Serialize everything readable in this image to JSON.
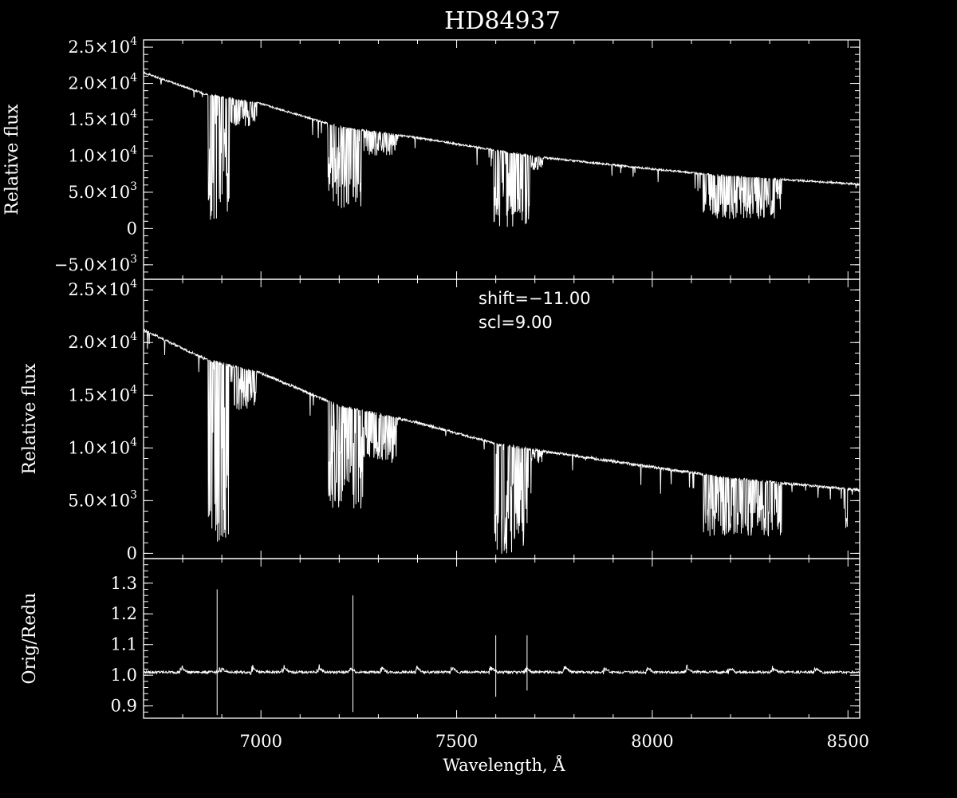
{
  "chart_data": {
    "title": "HD84937",
    "xlabel": "Wavelength, Å",
    "x_ticks": [
      "7000",
      "7500",
      "8000",
      "8500"
    ],
    "panels": [
      {
        "id": "top",
        "type": "line",
        "ylabel": "Relative flux",
        "ylim": [
          -7000,
          26000
        ],
        "y_ticks": [
          {
            "v": 25000,
            "m": "2.5",
            "e": "4"
          },
          {
            "v": 20000,
            "m": "2.0",
            "e": "4"
          },
          {
            "v": 15000,
            "m": "1.5",
            "e": "4"
          },
          {
            "v": 10000,
            "m": "1.0",
            "e": "4"
          },
          {
            "v": 5000,
            "m": "5.0",
            "e": "3"
          },
          {
            "v": 0,
            "m": "0",
            "e": ""
          },
          {
            "v": -5000,
            "m": "−5.0",
            "e": "3"
          }
        ],
        "continuum": [
          [
            6700,
            21500
          ],
          [
            6860,
            18500
          ],
          [
            7000,
            17200
          ],
          [
            7200,
            14000
          ],
          [
            7400,
            12500
          ],
          [
            7600,
            10800
          ],
          [
            7700,
            9900
          ],
          [
            8000,
            8200
          ],
          [
            8200,
            7200
          ],
          [
            8530,
            6100
          ]
        ],
        "bands": [
          {
            "from": 6865,
            "to": 6920,
            "min": 500
          },
          {
            "from": 6920,
            "to": 6990,
            "min": 14000
          },
          {
            "from": 7170,
            "to": 7260,
            "min": 2500
          },
          {
            "from": 7260,
            "to": 7350,
            "min": 10000
          },
          {
            "from": 7595,
            "to": 7690,
            "min": 0
          },
          {
            "from": 7690,
            "to": 7720,
            "min": 8000
          },
          {
            "from": 8130,
            "to": 8330,
            "min": 1200
          }
        ]
      },
      {
        "id": "middle",
        "type": "line",
        "ylabel": "Relative flux",
        "ylim": [
          -500,
          26000
        ],
        "y_ticks": [
          {
            "v": 25000,
            "m": "2.5",
            "e": "4"
          },
          {
            "v": 20000,
            "m": "2.0",
            "e": "4"
          },
          {
            "v": 15000,
            "m": "1.5",
            "e": "4"
          },
          {
            "v": 10000,
            "m": "1.0",
            "e": "4"
          },
          {
            "v": 5000,
            "m": "5.0",
            "e": "3"
          },
          {
            "v": 0,
            "m": "0",
            "e": ""
          }
        ],
        "annotations": [
          "shift=−11.00",
          "scl=9.00"
        ],
        "continuum": [
          [
            6700,
            21200
          ],
          [
            6860,
            18400
          ],
          [
            7000,
            17100
          ],
          [
            7200,
            14000
          ],
          [
            7400,
            12400
          ],
          [
            7600,
            10400
          ],
          [
            7700,
            9800
          ],
          [
            8000,
            8200
          ],
          [
            8200,
            7100
          ],
          [
            8530,
            6000
          ]
        ],
        "bands": [
          {
            "from": 6865,
            "to": 6920,
            "min": 700
          },
          {
            "from": 6920,
            "to": 6990,
            "min": 13500
          },
          {
            "from": 7170,
            "to": 7260,
            "min": 4000
          },
          {
            "from": 7260,
            "to": 7350,
            "min": 8500
          },
          {
            "from": 7595,
            "to": 7690,
            "min": -300
          },
          {
            "from": 7690,
            "to": 7720,
            "min": 8500
          },
          {
            "from": 8130,
            "to": 8330,
            "min": 1500
          },
          {
            "from": 8490,
            "to": 8500,
            "min": 2200
          }
        ]
      },
      {
        "id": "bottom",
        "type": "line",
        "ylabel": "Orig/Redu",
        "ylim": [
          0.86,
          1.38
        ],
        "y_ticks": [
          {
            "v": 1.3,
            "m": "1.3",
            "e": ""
          },
          {
            "v": 1.2,
            "m": "1.2",
            "e": ""
          },
          {
            "v": 1.1,
            "m": "1.1",
            "e": ""
          },
          {
            "v": 1.0,
            "m": "1.0",
            "e": ""
          },
          {
            "v": 0.9,
            "m": "0.9",
            "e": ""
          }
        ],
        "baseline": 1.01,
        "spikes": [
          {
            "x": 6888,
            "hi": 1.28,
            "lo": 0.87
          },
          {
            "x": 7235,
            "hi": 1.26,
            "lo": 0.88
          },
          {
            "x": 7600,
            "hi": 1.13,
            "lo": 0.93
          },
          {
            "x": 7680,
            "hi": 1.13,
            "lo": 0.95
          }
        ],
        "ripple_x": [
          6800,
          6900,
          6980,
          7060,
          7150,
          7230,
          7310,
          7400,
          7490,
          7590,
          7680,
          7780,
          7880,
          7990,
          8090,
          8200,
          8310,
          8420
        ]
      }
    ]
  }
}
